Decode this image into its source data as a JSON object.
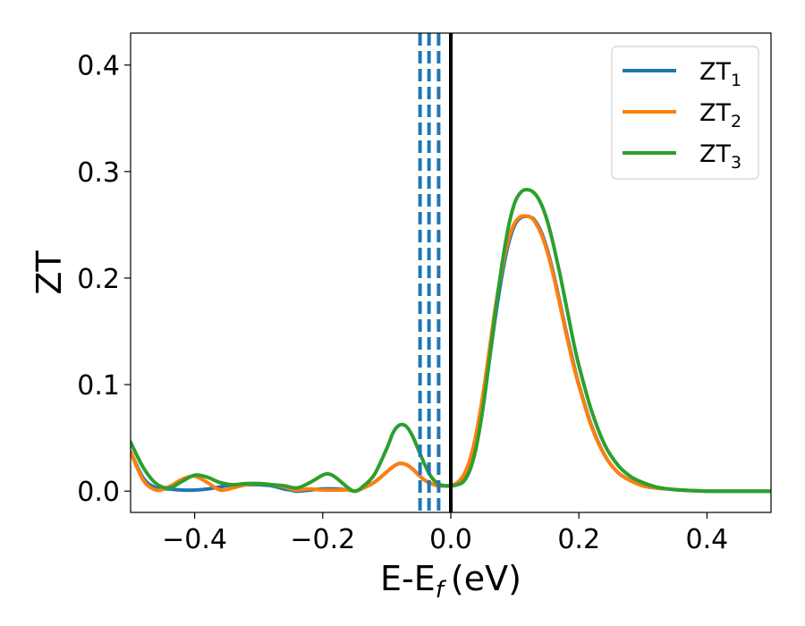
{
  "chart_data": {
    "type": "line",
    "title": "",
    "xlabel": "E-E",
    "xlabel_sub": "f",
    "xlabel_unit": "(eV)",
    "ylabel": "ZT",
    "xlim": [
      -0.5,
      0.5
    ],
    "ylim": [
      -0.02,
      0.43
    ],
    "xticks": [
      -0.4,
      -0.2,
      0.0,
      0.2,
      0.4
    ],
    "xtick_labels": [
      "−0.4",
      "−0.2",
      "0.0",
      "0.2",
      "0.4"
    ],
    "yticks": [
      0.0,
      0.1,
      0.2,
      0.3,
      0.4
    ],
    "ytick_labels": [
      "0.0",
      "0.1",
      "0.2",
      "0.3",
      "0.4"
    ],
    "grid": false,
    "legend_position": "top-right",
    "vlines": [
      {
        "x": -0.048,
        "style": "dashed",
        "color": "#1f77b4"
      },
      {
        "x": -0.034,
        "style": "dashed",
        "color": "#1f77b4"
      },
      {
        "x": -0.019,
        "style": "dashed",
        "color": "#1f77b4"
      },
      {
        "x": 0.0,
        "style": "solid",
        "color": "#000000"
      }
    ],
    "series": [
      {
        "name": "ZT",
        "sub": "1",
        "color": "#1f77b4",
        "x": [
          -0.5,
          -0.48,
          -0.46,
          -0.44,
          -0.42,
          -0.4,
          -0.38,
          -0.36,
          -0.34,
          -0.32,
          -0.3,
          -0.28,
          -0.26,
          -0.25,
          -0.24,
          -0.22,
          -0.2,
          -0.18,
          -0.16,
          -0.15,
          -0.14,
          -0.12,
          -0.1,
          -0.09,
          -0.08,
          -0.07,
          -0.06,
          -0.05,
          -0.04,
          -0.03,
          -0.02,
          -0.01,
          0.0,
          0.01,
          0.02,
          0.03,
          0.04,
          0.05,
          0.06,
          0.07,
          0.08,
          0.09,
          0.1,
          0.11,
          0.12,
          0.125,
          0.13,
          0.14,
          0.15,
          0.16,
          0.17,
          0.18,
          0.19,
          0.2,
          0.22,
          0.24,
          0.26,
          0.28,
          0.3,
          0.32,
          0.34,
          0.36,
          0.4,
          0.45,
          0.5
        ],
        "y": [
          0.037,
          0.012,
          0.003,
          0.002,
          0.001,
          0.001,
          0.002,
          0.004,
          0.006,
          0.006,
          0.006,
          0.005,
          0.002,
          0.001,
          0.0,
          0.001,
          0.002,
          0.002,
          0.001,
          0.0,
          0.002,
          0.008,
          0.018,
          0.023,
          0.026,
          0.025,
          0.021,
          0.015,
          0.01,
          0.007,
          0.005,
          0.005,
          0.005,
          0.006,
          0.011,
          0.023,
          0.046,
          0.08,
          0.122,
          0.165,
          0.203,
          0.232,
          0.25,
          0.257,
          0.258,
          0.257,
          0.255,
          0.245,
          0.228,
          0.205,
          0.178,
          0.15,
          0.124,
          0.1,
          0.061,
          0.034,
          0.018,
          0.01,
          0.005,
          0.003,
          0.002,
          0.001,
          0.0,
          0.0,
          0.0
        ]
      },
      {
        "name": "ZT",
        "sub": "2",
        "color": "#ff7f0e",
        "x": [
          -0.5,
          -0.48,
          -0.46,
          -0.44,
          -0.42,
          -0.4,
          -0.38,
          -0.36,
          -0.34,
          -0.32,
          -0.3,
          -0.28,
          -0.26,
          -0.25,
          -0.24,
          -0.22,
          -0.2,
          -0.18,
          -0.16,
          -0.15,
          -0.14,
          -0.12,
          -0.1,
          -0.09,
          -0.08,
          -0.07,
          -0.06,
          -0.05,
          -0.04,
          -0.03,
          -0.02,
          -0.01,
          0.0,
          0.01,
          0.02,
          0.03,
          0.04,
          0.05,
          0.06,
          0.07,
          0.08,
          0.09,
          0.1,
          0.11,
          0.12,
          0.125,
          0.13,
          0.14,
          0.15,
          0.16,
          0.17,
          0.18,
          0.19,
          0.2,
          0.22,
          0.24,
          0.26,
          0.28,
          0.3,
          0.32,
          0.34,
          0.36,
          0.4,
          0.45,
          0.5
        ],
        "y": [
          0.037,
          0.01,
          0.001,
          0.004,
          0.011,
          0.014,
          0.008,
          0.001,
          0.003,
          0.006,
          0.007,
          0.006,
          0.004,
          0.002,
          0.001,
          0.002,
          0.001,
          0.001,
          0.001,
          0.0,
          0.002,
          0.008,
          0.018,
          0.023,
          0.026,
          0.025,
          0.021,
          0.015,
          0.01,
          0.007,
          0.005,
          0.005,
          0.005,
          0.008,
          0.015,
          0.03,
          0.055,
          0.09,
          0.132,
          0.174,
          0.209,
          0.236,
          0.252,
          0.258,
          0.258,
          0.257,
          0.254,
          0.243,
          0.226,
          0.203,
          0.176,
          0.148,
          0.122,
          0.099,
          0.06,
          0.034,
          0.018,
          0.01,
          0.005,
          0.003,
          0.002,
          0.001,
          0.0,
          0.0,
          0.0
        ]
      },
      {
        "name": "ZT",
        "sub": "3",
        "color": "#2ca02c",
        "x": [
          -0.5,
          -0.48,
          -0.46,
          -0.44,
          -0.42,
          -0.4,
          -0.38,
          -0.36,
          -0.34,
          -0.32,
          -0.3,
          -0.28,
          -0.26,
          -0.24,
          -0.22,
          -0.2,
          -0.19,
          -0.18,
          -0.16,
          -0.15,
          -0.14,
          -0.12,
          -0.1,
          -0.09,
          -0.08,
          -0.07,
          -0.06,
          -0.05,
          -0.04,
          -0.03,
          -0.02,
          -0.01,
          0.0,
          0.01,
          0.02,
          0.03,
          0.04,
          0.05,
          0.06,
          0.07,
          0.08,
          0.09,
          0.1,
          0.11,
          0.12,
          0.13,
          0.14,
          0.15,
          0.16,
          0.17,
          0.18,
          0.19,
          0.2,
          0.22,
          0.24,
          0.26,
          0.28,
          0.3,
          0.32,
          0.34,
          0.36,
          0.4,
          0.45,
          0.5
        ],
        "y": [
          0.046,
          0.022,
          0.007,
          0.003,
          0.009,
          0.015,
          0.013,
          0.008,
          0.006,
          0.007,
          0.007,
          0.006,
          0.005,
          0.003,
          0.008,
          0.015,
          0.016,
          0.013,
          0.003,
          0.0,
          0.003,
          0.015,
          0.04,
          0.055,
          0.062,
          0.061,
          0.052,
          0.038,
          0.024,
          0.013,
          0.007,
          0.005,
          0.005,
          0.006,
          0.009,
          0.02,
          0.042,
          0.077,
          0.122,
          0.17,
          0.213,
          0.248,
          0.271,
          0.281,
          0.283,
          0.28,
          0.271,
          0.255,
          0.232,
          0.205,
          0.175,
          0.145,
          0.118,
          0.075,
          0.044,
          0.025,
          0.014,
          0.008,
          0.004,
          0.002,
          0.001,
          0.0,
          0.0,
          0.0
        ]
      }
    ]
  }
}
